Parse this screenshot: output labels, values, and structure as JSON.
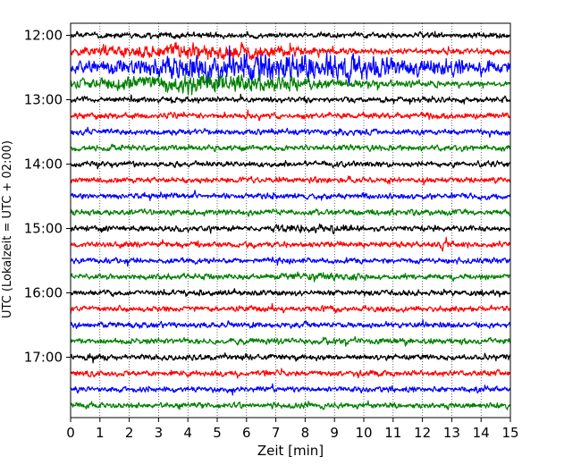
{
  "chart_data": {
    "type": "line",
    "subtype": "helicorder",
    "xlabel": "Zeit  [min]",
    "ylabel": "UTC (Lokalzeit = UTC + 02:00)",
    "xlim": [
      0,
      15
    ],
    "x_ticks": [
      "0",
      "1",
      "2",
      "3",
      "4",
      "5",
      "6",
      "7",
      "8",
      "9",
      "10",
      "11",
      "12",
      "13",
      "14",
      "15"
    ],
    "y_tick_labels": [
      "12:00",
      "13:00",
      "14:00",
      "15:00",
      "16:00",
      "17:00"
    ],
    "trace_interval_minutes": 15,
    "trace_start": "12:00",
    "trace_count": 24,
    "trace_colors": [
      "#000000",
      "#ff0000",
      "#0000ff",
      "#008000"
    ],
    "grid": "vertical dotted lines at each minute",
    "series": [
      {
        "start": "12:00",
        "color": "#000000",
        "events": []
      },
      {
        "start": "12:15",
        "color": "#ff0000",
        "events": [
          {
            "x": 4.5,
            "width": 7.0,
            "amp": 3.0
          }
        ]
      },
      {
        "start": "12:30",
        "color": "#0000ff",
        "events": [
          {
            "x": 7.5,
            "width": 14.0,
            "amp": 5.0
          }
        ]
      },
      {
        "start": "12:45",
        "color": "#008000",
        "events": [
          {
            "x": 4.5,
            "width": 9.0,
            "amp": 3.5
          }
        ]
      },
      {
        "start": "13:00",
        "color": "#000000",
        "events": []
      },
      {
        "start": "13:15",
        "color": "#ff0000",
        "events": [
          {
            "x": 12.2,
            "width": 0.4,
            "amp": 1.6
          }
        ]
      },
      {
        "start": "13:30",
        "color": "#0000ff",
        "events": [
          {
            "x": 9.2,
            "width": 0.5,
            "amp": 1.5
          }
        ]
      },
      {
        "start": "13:45",
        "color": "#008000",
        "events": []
      },
      {
        "start": "14:00",
        "color": "#000000",
        "events": []
      },
      {
        "start": "14:15",
        "color": "#ff0000",
        "events": []
      },
      {
        "start": "14:30",
        "color": "#0000ff",
        "events": [
          {
            "x": 10.0,
            "width": 0.3,
            "amp": 1.4
          }
        ]
      },
      {
        "start": "14:45",
        "color": "#008000",
        "events": [
          {
            "x": 10.8,
            "width": 2.0,
            "amp": 1.4
          }
        ]
      },
      {
        "start": "15:00",
        "color": "#000000",
        "events": [
          {
            "x": 8.6,
            "width": 2.5,
            "amp": 1.8
          }
        ]
      },
      {
        "start": "15:15",
        "color": "#ff0000",
        "events": [
          {
            "x": 12.8,
            "width": 0.4,
            "amp": 2.2
          }
        ]
      },
      {
        "start": "15:30",
        "color": "#0000ff",
        "events": [
          {
            "x": 7.5,
            "width": 0.6,
            "amp": 1.1
          }
        ]
      },
      {
        "start": "15:45",
        "color": "#008000",
        "events": [
          {
            "x": 8.5,
            "width": 3.0,
            "amp": 1.6
          }
        ]
      },
      {
        "start": "16:00",
        "color": "#000000",
        "events": []
      },
      {
        "start": "16:15",
        "color": "#ff0000",
        "events": []
      },
      {
        "start": "16:30",
        "color": "#0000ff",
        "events": []
      },
      {
        "start": "16:45",
        "color": "#008000",
        "events": [
          {
            "x": 6.0,
            "width": 1.0,
            "amp": 1.2
          }
        ]
      },
      {
        "start": "17:00",
        "color": "#000000",
        "events": []
      },
      {
        "start": "17:15",
        "color": "#ff0000",
        "events": []
      },
      {
        "start": "17:30",
        "color": "#0000ff",
        "events": []
      },
      {
        "start": "17:45",
        "color": "#008000",
        "events": [
          {
            "x": 5.8,
            "width": 0.3,
            "amp": 1.4
          }
        ]
      }
    ]
  }
}
